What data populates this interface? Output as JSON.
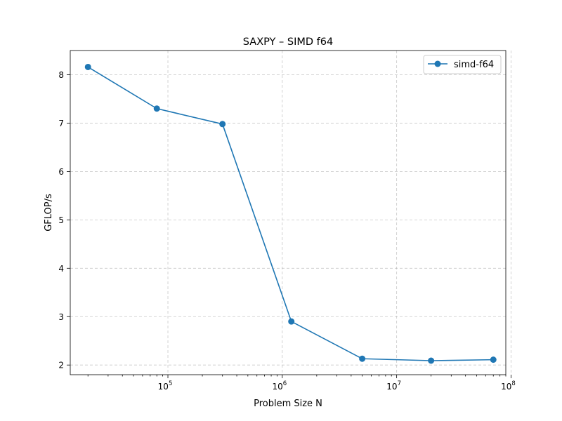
{
  "chart_data": {
    "type": "line",
    "title": "SAXPY – SIMD f64",
    "xlabel": "Problem Size N",
    "ylabel": "GFLOP/s",
    "xscale": "log",
    "xlim": [
      14000,
      90000000
    ],
    "ylim": [
      1.8,
      8.5
    ],
    "grid": true,
    "legend_position": "top-right",
    "x_ticks": [
      {
        "value": 100000,
        "base": "10",
        "exp": "5"
      },
      {
        "value": 1000000,
        "base": "10",
        "exp": "6"
      },
      {
        "value": 10000000,
        "base": "10",
        "exp": "7"
      },
      {
        "value": 100000000,
        "base": "10",
        "exp": "8"
      }
    ],
    "y_ticks": [
      2,
      3,
      4,
      5,
      6,
      7,
      8
    ],
    "y_tick_labels": [
      "2",
      "3",
      "4",
      "5",
      "6",
      "7",
      "8"
    ],
    "series": [
      {
        "name": "simd-f64",
        "color": "#1f77b4",
        "marker": "circle",
        "x": [
          20000,
          80000,
          300000,
          1200000,
          5000000,
          20000000,
          70000000
        ],
        "y": [
          8.16,
          7.3,
          6.98,
          2.9,
          2.13,
          2.09,
          2.11
        ]
      }
    ]
  }
}
